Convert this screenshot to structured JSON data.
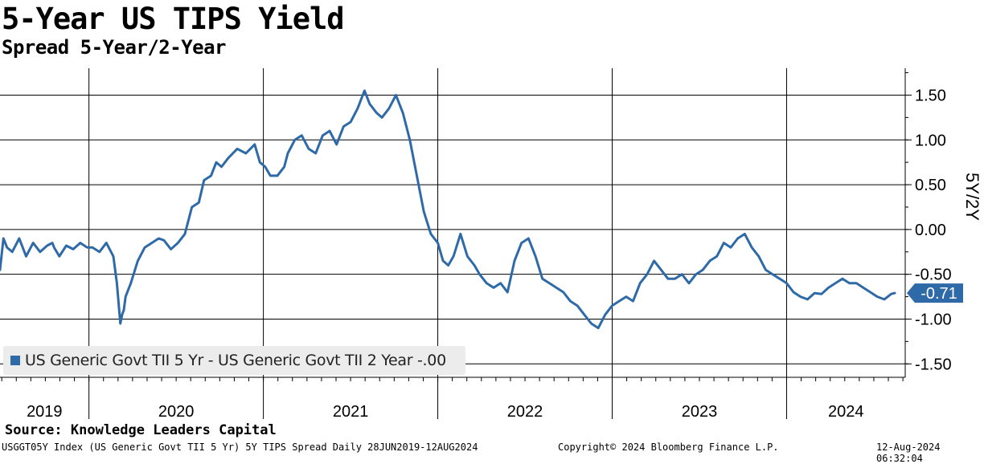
{
  "header": {
    "title": "5-Year US TIPS Yield",
    "subtitle": "Spread 5-Year/2-Year"
  },
  "legend": {
    "label": "US Generic Govt TII 5 Yr - US Generic Govt TII 2 Year -.00"
  },
  "last_value_label": "-0.71",
  "footer": {
    "source": "Source: Knowledge Leaders Capital",
    "left": "USGGT05Y Index (US Generic Govt TII 5 Yr) 5Y TIPS Spread  Daily 28JUN2019-12AUG2024",
    "center": "Copyright© 2024 Bloomberg Finance L.P.",
    "right": "12-Aug-2024 06:32:04"
  },
  "colors": {
    "line": "#2f6aa8",
    "last_value_box": "#2f6aa8",
    "grid": "#000000",
    "legend_bg": "#ececec"
  },
  "chart_data": {
    "type": "line",
    "ylabel": "5Y/2Y",
    "y_ticks": [
      1.5,
      1.0,
      0.5,
      0.0,
      -0.5,
      -1.0,
      -1.5
    ],
    "y_tick_labels": [
      "1.50",
      "1.00",
      "0.50",
      "0.00",
      "-0.50",
      "-1.00",
      "-1.50"
    ],
    "ylim": [
      -1.65,
      1.8
    ],
    "xlim": [
      2019.49,
      2024.68
    ],
    "x_year_labels": [
      "2019",
      "2020",
      "2021",
      "2022",
      "2023",
      "2024"
    ],
    "year_boundaries": [
      2020.0,
      2021.0,
      2022.0,
      2023.0,
      2024.0
    ],
    "grid": true,
    "legend_position": "bottom-left",
    "series": [
      {
        "name": "US Generic Govt TII 5 Yr - US Generic Govt TII 2 Year -.00",
        "x": [
          2019.49,
          2019.51,
          2019.53,
          2019.56,
          2019.6,
          2019.64,
          2019.68,
          2019.72,
          2019.76,
          2019.79,
          2019.8,
          2019.83,
          2019.87,
          2019.91,
          2019.95,
          2019.99,
          2020.02,
          2020.06,
          2020.1,
          2020.14,
          2020.16,
          2020.18,
          2020.19,
          2020.2,
          2020.21,
          2020.24,
          2020.28,
          2020.32,
          2020.36,
          2020.4,
          2020.43,
          2020.47,
          2020.51,
          2020.55,
          2020.59,
          2020.63,
          2020.66,
          2020.7,
          2020.73,
          2020.76,
          2020.8,
          2020.85,
          2020.9,
          2020.95,
          2020.98,
          2021.01,
          2021.04,
          2021.08,
          2021.12,
          2021.14,
          2021.18,
          2021.22,
          2021.26,
          2021.3,
          2021.34,
          2021.38,
          2021.42,
          2021.46,
          2021.5,
          2021.54,
          2021.58,
          2021.61,
          2021.65,
          2021.68,
          2021.72,
          2021.76,
          2021.8,
          2021.84,
          2021.88,
          2021.92,
          2021.96,
          2022.0,
          2022.03,
          2022.06,
          2022.09,
          2022.13,
          2022.17,
          2022.21,
          2022.24,
          2022.28,
          2022.32,
          2022.36,
          2022.4,
          2022.44,
          2022.48,
          2022.52,
          2022.56,
          2022.6,
          2022.64,
          2022.68,
          2022.72,
          2022.76,
          2022.8,
          2022.84,
          2022.88,
          2022.92,
          2022.96,
          2023.0,
          2023.04,
          2023.08,
          2023.12,
          2023.16,
          2023.2,
          2023.24,
          2023.28,
          2023.32,
          2023.36,
          2023.4,
          2023.44,
          2023.48,
          2023.52,
          2023.56,
          2023.6,
          2023.64,
          2023.68,
          2023.72,
          2023.76,
          2023.8,
          2023.84,
          2023.88,
          2023.92,
          2023.96,
          2024.0,
          2024.04,
          2024.08,
          2024.12,
          2024.16,
          2024.2,
          2024.24,
          2024.28,
          2024.32,
          2024.36,
          2024.4,
          2024.44,
          2024.48,
          2024.52,
          2024.56,
          2024.6,
          2024.62
        ],
        "y": [
          -0.45,
          -0.1,
          -0.2,
          -0.25,
          -0.1,
          -0.3,
          -0.15,
          -0.25,
          -0.18,
          -0.15,
          -0.2,
          -0.3,
          -0.18,
          -0.22,
          -0.15,
          -0.2,
          -0.2,
          -0.25,
          -0.15,
          -0.3,
          -0.6,
          -1.05,
          -0.95,
          -0.9,
          -0.75,
          -0.6,
          -0.35,
          -0.2,
          -0.15,
          -0.1,
          -0.12,
          -0.22,
          -0.15,
          -0.05,
          0.25,
          0.3,
          0.55,
          0.6,
          0.75,
          0.7,
          0.8,
          0.9,
          0.85,
          0.95,
          0.75,
          0.7,
          0.6,
          0.6,
          0.7,
          0.85,
          1.0,
          1.05,
          0.9,
          0.85,
          1.05,
          1.1,
          0.95,
          1.15,
          1.2,
          1.35,
          1.55,
          1.4,
          1.3,
          1.25,
          1.35,
          1.5,
          1.3,
          1.0,
          0.6,
          0.2,
          -0.05,
          -0.15,
          -0.35,
          -0.4,
          -0.3,
          -0.05,
          -0.3,
          -0.4,
          -0.5,
          -0.6,
          -0.65,
          -0.6,
          -0.7,
          -0.35,
          -0.15,
          -0.1,
          -0.3,
          -0.55,
          -0.6,
          -0.65,
          -0.7,
          -0.8,
          -0.85,
          -0.95,
          -1.05,
          -1.1,
          -0.95,
          -0.85,
          -0.8,
          -0.75,
          -0.8,
          -0.6,
          -0.5,
          -0.35,
          -0.45,
          -0.55,
          -0.55,
          -0.5,
          -0.6,
          -0.5,
          -0.45,
          -0.35,
          -0.3,
          -0.15,
          -0.2,
          -0.1,
          -0.05,
          -0.2,
          -0.3,
          -0.45,
          -0.5,
          -0.55,
          -0.6,
          -0.7,
          -0.75,
          -0.78,
          -0.71,
          -0.72,
          -0.65,
          -0.6,
          -0.55,
          -0.6,
          -0.6,
          -0.65,
          -0.7,
          -0.75,
          -0.78,
          -0.72,
          -0.71
        ]
      }
    ]
  }
}
